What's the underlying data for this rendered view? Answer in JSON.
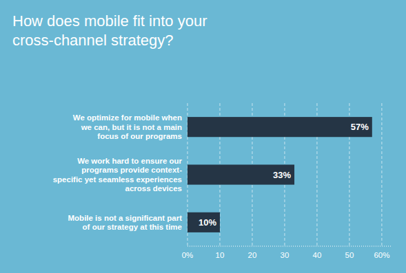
{
  "chart_data": {
    "type": "bar",
    "orientation": "horizontal",
    "title": "How does mobile fit into your\ncross-channel strategy?",
    "categories": [
      "We optimize for mobile when\nwe can, but it is not a main\nfocus of our programs",
      "We work hard to ensure our\nprograms provide context-\nspecific yet seamless experiences\nacross devices",
      "Mobile is not a significant part\nof our strategy at this time"
    ],
    "values": [
      57,
      33,
      10
    ],
    "value_labels": [
      "57%",
      "33%",
      "10%"
    ],
    "data_labels": true,
    "color": "#253545",
    "xlim": [
      0,
      63
    ],
    "xticks": [
      {
        "value": 0,
        "label": "0%"
      },
      10,
      20,
      30,
      40,
      50,
      {
        "value": 60,
        "label": "60%"
      }
    ],
    "grid": true
  }
}
